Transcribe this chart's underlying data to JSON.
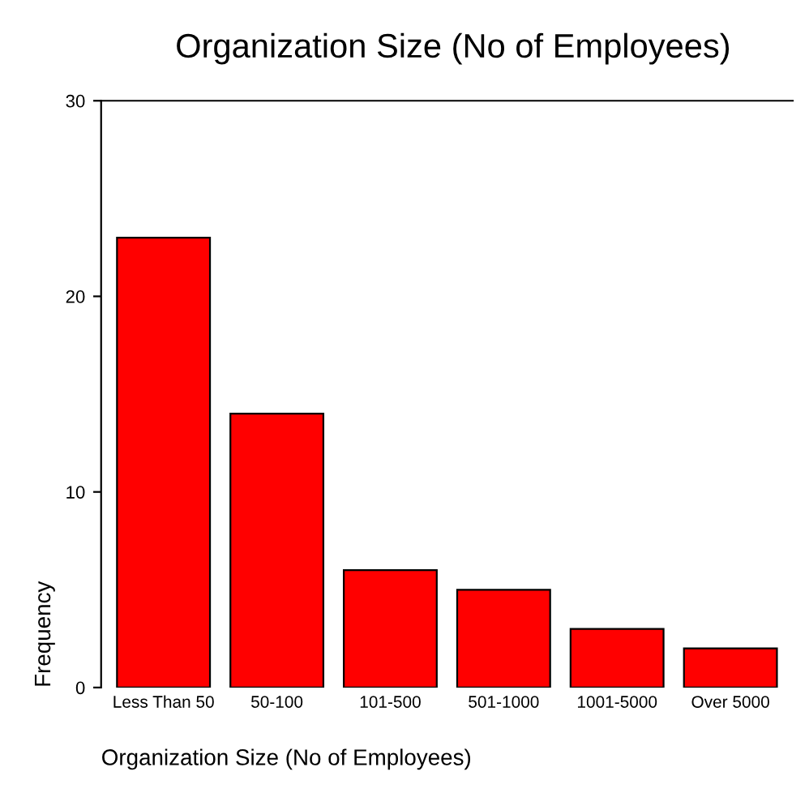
{
  "chart_data": {
    "type": "bar",
    "title": "Organization Size (No of Employees)",
    "xlabel": "Organization Size (No of Employees)",
    "ylabel": "Frequency",
    "categories": [
      "Less Than 50",
      "50-100",
      "101-500",
      "501-1000",
      "1001-5000",
      "Over 5000"
    ],
    "values": [
      23,
      14,
      6,
      5,
      3,
      2
    ],
    "color": "#ff0000",
    "ylim": [
      0,
      30
    ],
    "yticks": [
      0,
      10,
      20,
      30
    ],
    "grid": false
  }
}
